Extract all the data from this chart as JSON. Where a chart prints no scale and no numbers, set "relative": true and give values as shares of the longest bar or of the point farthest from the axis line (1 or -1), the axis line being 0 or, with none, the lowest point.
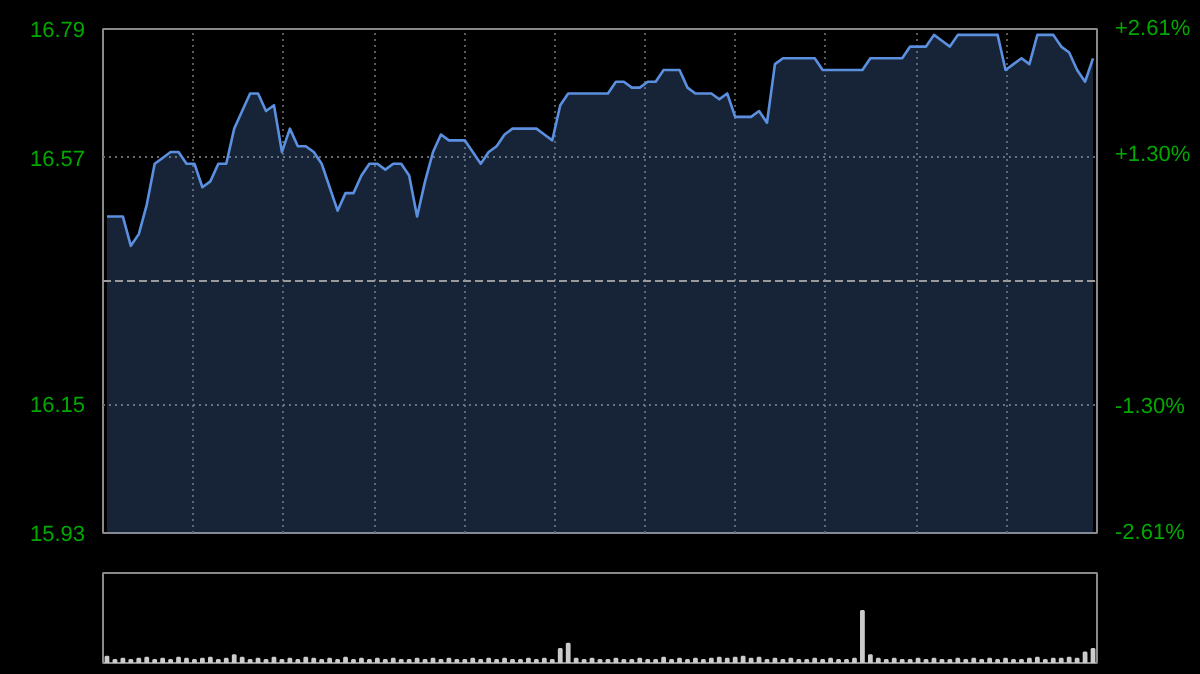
{
  "chart_data": [
    {
      "type": "area",
      "categories": [
        null,
        null,
        null,
        null,
        null,
        null,
        null,
        null,
        null,
        null,
        null,
        null,
        null,
        null,
        null,
        null,
        null,
        null,
        null,
        null,
        null,
        null,
        null,
        null,
        null,
        null,
        null,
        null,
        null,
        null,
        null,
        null,
        null,
        null,
        null,
        null,
        null,
        null,
        null,
        null,
        null,
        null,
        null,
        null,
        null,
        null,
        null,
        null,
        null,
        null,
        null,
        null,
        null,
        null,
        null,
        null,
        null,
        null,
        null,
        null,
        null,
        null,
        null,
        null,
        null,
        null,
        null,
        null,
        null,
        null,
        null,
        null,
        null,
        null,
        null,
        null,
        null,
        null,
        null,
        null,
        null,
        null,
        null,
        null,
        null,
        null,
        null,
        null,
        null,
        null,
        null,
        null,
        null,
        null,
        null,
        null,
        null,
        null,
        null,
        null,
        null,
        null,
        null,
        null,
        null,
        null,
        null,
        null,
        null,
        null,
        null,
        null,
        null,
        null,
        null,
        null,
        null,
        null,
        null,
        null,
        null,
        null,
        null,
        null,
        null
      ],
      "series": [
        {
          "color": "#5b8fe0",
          "values": [
            16.47,
            16.47,
            16.47,
            16.42,
            16.44,
            16.49,
            16.56,
            16.57,
            16.58,
            16.58,
            16.56,
            16.56,
            16.52,
            16.53,
            16.56,
            16.56,
            16.62,
            16.65,
            16.68,
            16.68,
            16.65,
            16.66,
            16.58,
            16.62,
            16.59,
            16.59,
            16.58,
            16.56,
            16.52,
            16.48,
            16.51,
            16.51,
            16.54,
            16.56,
            16.56,
            16.55,
            16.56,
            16.56,
            16.54,
            16.47,
            16.53,
            16.58,
            16.61,
            16.6,
            16.6,
            16.6,
            16.58,
            16.56,
            16.58,
            16.59,
            16.61,
            16.62,
            16.62,
            16.62,
            16.62,
            16.61,
            16.6,
            16.66,
            16.68,
            16.68,
            16.68,
            16.68,
            16.68,
            16.68,
            16.7,
            16.7,
            16.69,
            16.69,
            16.7,
            16.7,
            16.72,
            16.72,
            16.72,
            16.69,
            16.68,
            16.68,
            16.68,
            16.67,
            16.68,
            16.64,
            16.64,
            16.64,
            16.65,
            16.63,
            16.73,
            16.74,
            16.74,
            16.74,
            16.74,
            16.74,
            16.72,
            16.72,
            16.72,
            16.72,
            16.72,
            16.72,
            16.74,
            16.74,
            16.74,
            16.74,
            16.74,
            16.76,
            16.76,
            16.76,
            16.78,
            16.77,
            16.76,
            16.78,
            16.78,
            16.78,
            16.78,
            16.78,
            16.78,
            16.72,
            16.73,
            16.74,
            16.73,
            16.78,
            16.78,
            16.78,
            16.76,
            16.75,
            16.72,
            16.7,
            16.74
          ]
        }
      ],
      "ylim": [
        15.93,
        16.79
      ],
      "yticks": [
        15.93,
        16.15,
        16.57,
        16.79
      ],
      "y2lim": [
        -2.61,
        2.61
      ],
      "y2ticks": [
        {
          "value": -2.61,
          "label": "-2.61%"
        },
        {
          "value": -1.3,
          "label": "-1.30%"
        },
        {
          "value": 1.3,
          "label": "+1.30%"
        },
        {
          "value": 2.61,
          "label": "+2.61%"
        }
      ],
      "grid": true,
      "ref_lines": [
        {
          "axis": "y",
          "value": 16.36,
          "color": "#9a9a9a",
          "line_style": "dashed"
        }
      ]
    },
    {
      "type": "bar",
      "relative": true,
      "color": "#cccccc",
      "categories": [
        null,
        null,
        null,
        null,
        null,
        null,
        null,
        null,
        null,
        null,
        null,
        null,
        null,
        null,
        null,
        null,
        null,
        null,
        null,
        null,
        null,
        null,
        null,
        null,
        null,
        null,
        null,
        null,
        null,
        null,
        null,
        null,
        null,
        null,
        null,
        null,
        null,
        null,
        null,
        null,
        null,
        null,
        null,
        null,
        null,
        null,
        null,
        null,
        null,
        null,
        null,
        null,
        null,
        null,
        null,
        null,
        null,
        null,
        null,
        null,
        null,
        null,
        null,
        null,
        null,
        null,
        null,
        null,
        null,
        null,
        null,
        null,
        null,
        null,
        null,
        null,
        null,
        null,
        null,
        null,
        null,
        null,
        null,
        null,
        null,
        null,
        null,
        null,
        null,
        null,
        null,
        null,
        null,
        null,
        null,
        null,
        null,
        null,
        null,
        null,
        null,
        null,
        null,
        null,
        null,
        null,
        null,
        null,
        null,
        null,
        null,
        null,
        null,
        null,
        null,
        null,
        null,
        null,
        null,
        null,
        null,
        null,
        null,
        null,
        null
      ],
      "values": [
        0.12,
        0.06,
        0.08,
        0.06,
        0.08,
        0.1,
        0.06,
        0.08,
        0.06,
        0.1,
        0.08,
        0.06,
        0.08,
        0.1,
        0.06,
        0.08,
        0.15,
        0.1,
        0.06,
        0.08,
        0.06,
        0.1,
        0.06,
        0.08,
        0.06,
        0.1,
        0.08,
        0.06,
        0.08,
        0.06,
        0.1,
        0.06,
        0.08,
        0.06,
        0.08,
        0.06,
        0.08,
        0.06,
        0.06,
        0.08,
        0.06,
        0.08,
        0.06,
        0.08,
        0.06,
        0.06,
        0.08,
        0.06,
        0.08,
        0.06,
        0.08,
        0.06,
        0.06,
        0.08,
        0.06,
        0.08,
        0.06,
        0.27,
        0.37,
        0.08,
        0.06,
        0.08,
        0.06,
        0.06,
        0.08,
        0.06,
        0.06,
        0.08,
        0.06,
        0.06,
        0.1,
        0.06,
        0.08,
        0.06,
        0.08,
        0.06,
        0.08,
        0.1,
        0.08,
        0.1,
        0.12,
        0.08,
        0.1,
        0.06,
        0.08,
        0.06,
        0.08,
        0.06,
        0.06,
        0.08,
        0.06,
        0.08,
        0.06,
        0.06,
        0.08,
        1,
        0.15,
        0.08,
        0.06,
        0.08,
        0.06,
        0.06,
        0.08,
        0.06,
        0.08,
        0.06,
        0.06,
        0.08,
        0.06,
        0.08,
        0.06,
        0.08,
        0.06,
        0.08,
        0.06,
        0.06,
        0.08,
        0.1,
        0.06,
        0.08,
        0.08,
        0.1,
        0.08,
        0.2,
        0.27
      ]
    }
  ]
}
